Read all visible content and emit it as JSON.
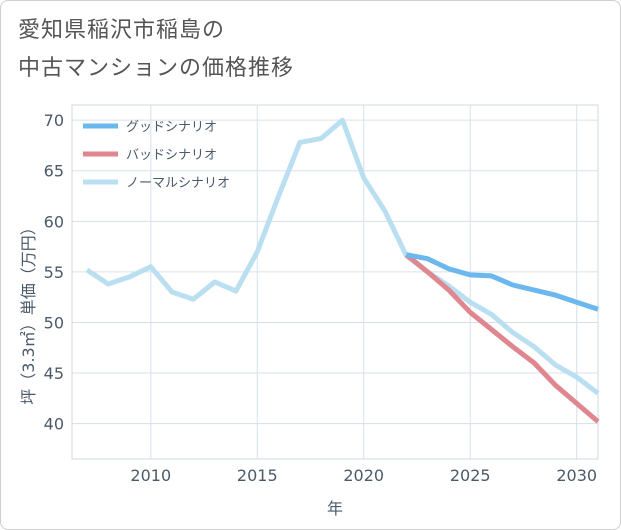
{
  "page": {
    "title_line1": "愛知県稲沢市稲島の",
    "title_line2": "中古マンションの価格推移"
  },
  "chart_data": {
    "type": "line",
    "title": "愛知県稲沢市稲島の中古マンションの価格推移",
    "xlabel": "年",
    "ylabel": "坪（3.3㎡）単価（万円）",
    "xlim": [
      2006.3,
      2031
    ],
    "ylim": [
      36.5,
      71.5
    ],
    "x_ticks": [
      2010,
      2015,
      2020,
      2025,
      2030
    ],
    "y_ticks": [
      40,
      45,
      50,
      55,
      60,
      65,
      70
    ],
    "grid": true,
    "legend_position": "top-left",
    "series": [
      {
        "name": "グッドシナリオ",
        "color": "#6bb8ee",
        "x": [
          2022,
          2023,
          2024,
          2025,
          2026,
          2027,
          2028,
          2029,
          2030,
          2031
        ],
        "values": [
          56.7,
          56.3,
          55.3,
          54.7,
          54.6,
          53.7,
          53.2,
          52.7,
          52.0,
          51.3
        ]
      },
      {
        "name": "バッドシナリオ",
        "color": "#e0868f",
        "x": [
          2022,
          2023,
          2024,
          2025,
          2026,
          2027,
          2028,
          2029,
          2030,
          2031
        ],
        "values": [
          56.7,
          55.0,
          53.2,
          51.0,
          49.3,
          47.6,
          46.0,
          43.8,
          42.0,
          40.2
        ]
      },
      {
        "name": "ノーマルシナリオ",
        "color": "#b9dff0",
        "x": [
          2007,
          2008,
          2009,
          2010,
          2011,
          2012,
          2013,
          2014,
          2015,
          2016,
          2017,
          2018,
          2019,
          2020,
          2021,
          2022,
          2023,
          2024,
          2025,
          2026,
          2027,
          2028,
          2029,
          2030,
          2031
        ],
        "values": [
          55.2,
          53.8,
          54.5,
          55.5,
          53.0,
          52.3,
          54.0,
          53.1,
          57.0,
          62.5,
          67.8,
          68.2,
          70.0,
          64.3,
          61.0,
          56.6,
          55.0,
          53.6,
          52.0,
          50.8,
          49.0,
          47.6,
          45.8,
          44.6,
          43.0
        ]
      }
    ]
  }
}
